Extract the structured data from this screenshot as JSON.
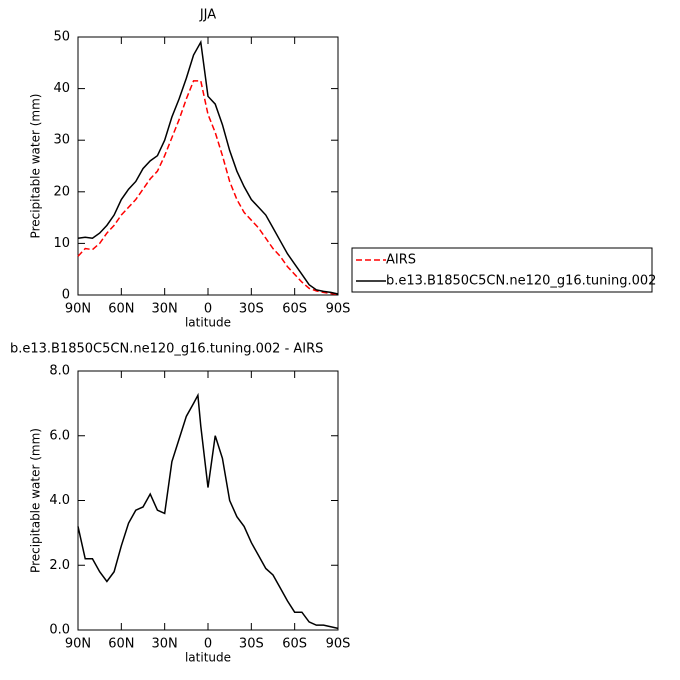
{
  "chart_data": [
    {
      "type": "line",
      "title": "JJA",
      "x_label": "latitude",
      "y_label": "Precipitable water (mm)",
      "x": [
        90,
        85,
        80,
        75,
        70,
        65,
        60,
        55,
        50,
        45,
        40,
        35,
        30,
        25,
        20,
        15,
        10,
        5,
        0,
        -5,
        -10,
        -15,
        -20,
        -25,
        -30,
        -35,
        -40,
        -45,
        -50,
        -55,
        -60,
        -65,
        -70,
        -75,
        -80,
        -85,
        -90
      ],
      "series": [
        {
          "name": "AIRS",
          "color": "#ff0000",
          "linestyle": "dashed",
          "values": [
            7.5,
            9,
            8.8,
            10,
            12,
            13.5,
            15.5,
            17,
            18.5,
            20.5,
            22.5,
            24,
            27,
            30.5,
            34,
            38,
            41.5,
            41.5,
            35,
            31.5,
            27,
            22,
            18.5,
            16,
            14.5,
            13,
            11,
            9,
            7.5,
            5.5,
            4,
            2.5,
            1.3,
            0.8,
            0.5,
            0.3,
            0.1
          ]
        },
        {
          "name": "b.e13.B1850C5CN.ne120_g16.tuning.002",
          "color": "#000000",
          "linestyle": "solid",
          "values": [
            11,
            11.2,
            11,
            12,
            13.5,
            15.5,
            18.5,
            20.5,
            22,
            24.5,
            26,
            27,
            30,
            34.5,
            38,
            42,
            46.5,
            49,
            38.5,
            37,
            33,
            28,
            24,
            21,
            18.5,
            17,
            15.5,
            13,
            10.5,
            8,
            6,
            4,
            2,
            1,
            0.7,
            0.5,
            0.2
          ]
        }
      ],
      "xlim": [
        90,
        -90
      ],
      "xticks": [
        {
          "value": 90,
          "label": "90N"
        },
        {
          "value": 60,
          "label": "60N"
        },
        {
          "value": 30,
          "label": "30N"
        },
        0,
        {
          "value": -30,
          "label": "30S"
        },
        {
          "value": -60,
          "label": "60S"
        },
        {
          "value": -90,
          "label": "90S"
        }
      ],
      "ylim": [
        0,
        50
      ],
      "yticks": [
        0,
        10,
        20,
        30,
        40,
        50
      ],
      "legend": "right"
    },
    {
      "type": "line",
      "title": "b.e13.B1850C5CN.ne120_g16.tuning.002 - AIRS",
      "x_label": "latitude",
      "y_label": "Precipitable water (mm)",
      "x": [
        90,
        85,
        80,
        75,
        70,
        65,
        60,
        55,
        50,
        45,
        40,
        35,
        30,
        25,
        20,
        15,
        10,
        7,
        5,
        0,
        -5,
        -10,
        -15,
        -20,
        -25,
        -30,
        -35,
        -40,
        -45,
        -50,
        -55,
        -60,
        -65,
        -70,
        -75,
        -80,
        -85,
        -90
      ],
      "series": [
        {
          "name": "difference",
          "color": "#000000",
          "linestyle": "solid",
          "values": [
            3.2,
            2.2,
            2.2,
            1.8,
            1.5,
            1.8,
            2.6,
            3.3,
            3.7,
            3.8,
            4.2,
            3.7,
            3.6,
            5.2,
            5.9,
            6.6,
            7.0,
            7.25,
            6.3,
            4.4,
            6.0,
            5.3,
            4.0,
            3.5,
            3.2,
            2.7,
            2.3,
            1.9,
            1.7,
            1.3,
            0.9,
            0.55,
            0.55,
            0.25,
            0.15,
            0.15,
            0.1,
            0.05
          ]
        }
      ],
      "xlim": [
        90,
        -90
      ],
      "xticks": [
        {
          "value": 90,
          "label": "90N"
        },
        {
          "value": 60,
          "label": "60N"
        },
        {
          "value": 30,
          "label": "30N"
        },
        0,
        {
          "value": -30,
          "label": "30S"
        },
        {
          "value": -60,
          "label": "60S"
        },
        {
          "value": -90,
          "label": "90S"
        }
      ],
      "ylim": [
        0,
        8
      ],
      "yticks": [
        {
          "value": 0,
          "label": "0.0"
        },
        {
          "value": 2,
          "label": "2.0"
        },
        {
          "value": 4,
          "label": "4.0"
        },
        {
          "value": 6,
          "label": "6.0"
        },
        {
          "value": 8,
          "label": "8.0"
        }
      ]
    }
  ]
}
